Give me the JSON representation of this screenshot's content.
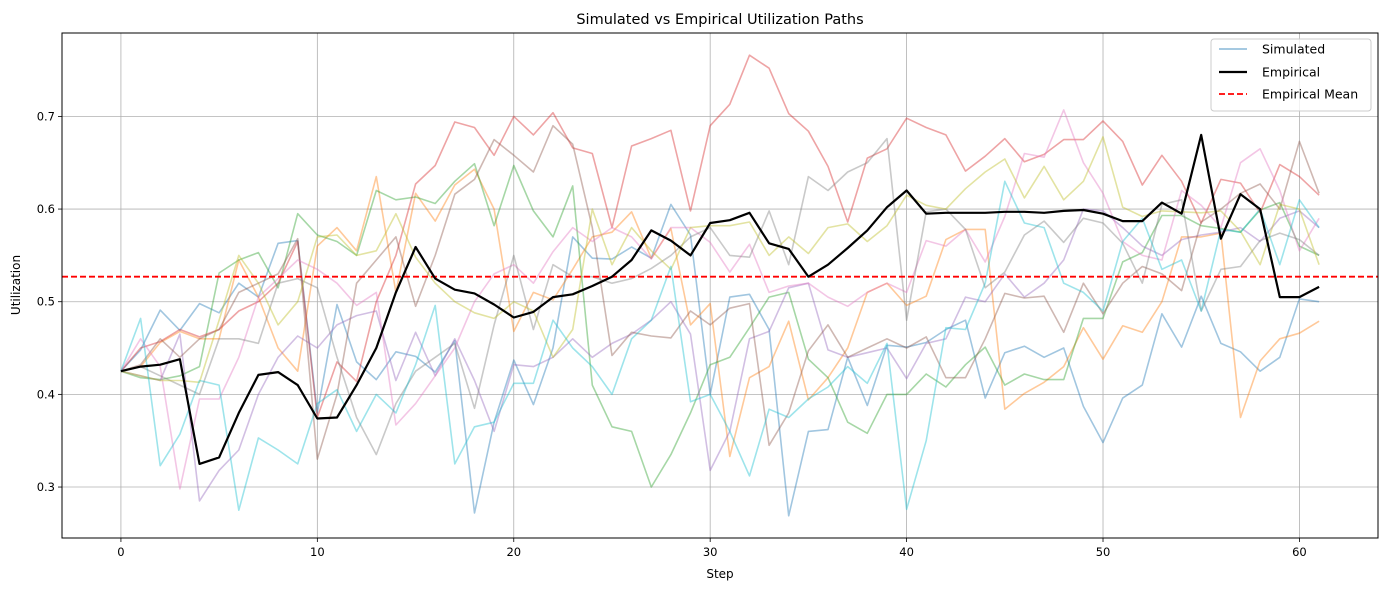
{
  "chart_data": {
    "type": "line",
    "title": "Simulated vs Empirical Utilization Paths",
    "xlabel": "Step",
    "ylabel": "Utilization",
    "xlim": [
      -3,
      64
    ],
    "ylim": [
      0.245,
      0.79
    ],
    "xticks": [
      0,
      10,
      20,
      30,
      40,
      50,
      60
    ],
    "yticks": [
      0.3,
      0.4,
      0.5,
      0.6,
      0.7
    ],
    "grid": true,
    "legend_position": "top-right",
    "legend": [
      {
        "label": "Simulated",
        "color": "#1f77b4",
        "style": "solid",
        "alpha": 0.4
      },
      {
        "label": "Empirical",
        "color": "#000000",
        "style": "solid",
        "alpha": 1
      },
      {
        "label": "Empirical Mean",
        "color": "#ff0000",
        "style": "dashed",
        "alpha": 1
      }
    ],
    "empirical_mean": 0.527,
    "x": [
      0,
      1,
      2,
      3,
      4,
      5,
      6,
      7,
      8,
      9,
      10,
      11,
      12,
      13,
      14,
      15,
      16,
      17,
      18,
      19,
      20,
      21,
      22,
      23,
      24,
      25,
      26,
      27,
      28,
      29,
      30,
      31,
      32,
      33,
      34,
      35,
      36,
      37,
      38,
      39,
      40,
      41,
      42,
      43,
      44,
      45,
      46,
      47,
      48,
      49,
      50,
      51,
      52,
      53,
      54,
      55,
      56,
      57,
      58,
      59,
      60,
      61
    ],
    "empirical": [
      0.425,
      0.43,
      0.432,
      0.438,
      0.325,
      0.332,
      0.38,
      0.421,
      0.424,
      0.41,
      0.374,
      0.375,
      0.41,
      0.45,
      0.51,
      0.559,
      0.525,
      0.513,
      0.509,
      0.497,
      0.483,
      0.489,
      0.505,
      0.508,
      0.517,
      0.527,
      0.545,
      0.577,
      0.566,
      0.55,
      0.585,
      0.588,
      0.596,
      0.563,
      0.557,
      0.527,
      0.54,
      0.558,
      0.577,
      0.602,
      0.62,
      0.595,
      0.596,
      0.596,
      0.596,
      0.597,
      0.597,
      0.596,
      0.598,
      0.599,
      0.595,
      0.587,
      0.587,
      0.607,
      0.595,
      0.68,
      0.568,
      0.616,
      0.6,
      0.505,
      0.505,
      0.516
    ],
    "series": [
      {
        "color": "#1f77b4",
        "values": [
          0.425,
          0.448,
          0.491,
          0.469,
          0.498,
          0.488,
          0.52,
          0.505,
          0.563,
          0.566,
          0.38,
          0.497,
          0.435,
          0.416,
          0.446,
          0.441,
          0.424,
          0.458,
          0.272,
          0.37,
          0.437,
          0.389,
          0.45,
          0.57,
          0.547,
          0.546,
          0.559,
          0.547,
          0.605,
          0.572,
          0.4,
          0.505,
          0.508,
          0.47,
          0.269,
          0.36,
          0.362,
          0.44,
          0.388,
          0.453,
          0.451,
          0.456,
          0.47,
          0.48,
          0.396,
          0.445,
          0.452,
          0.44,
          0.45,
          0.387,
          0.348,
          0.396,
          0.41,
          0.487,
          0.451,
          0.506,
          0.455,
          0.446,
          0.425,
          0.44,
          0.503,
          0.5
        ]
      },
      {
        "color": "#ff7f0e",
        "values": [
          0.425,
          0.43,
          0.456,
          0.468,
          0.46,
          0.46,
          0.545,
          0.505,
          0.45,
          0.425,
          0.56,
          0.58,
          0.555,
          0.635,
          0.51,
          0.617,
          0.587,
          0.626,
          0.643,
          0.6,
          0.468,
          0.51,
          0.502,
          0.535,
          0.57,
          0.575,
          0.597,
          0.547,
          0.579,
          0.475,
          0.498,
          0.333,
          0.418,
          0.43,
          0.479,
          0.394,
          0.418,
          0.45,
          0.51,
          0.52,
          0.496,
          0.506,
          0.567,
          0.578,
          0.578,
          0.384,
          0.401,
          0.413,
          0.43,
          0.472,
          0.438,
          0.474,
          0.467,
          0.5,
          0.57,
          0.57,
          0.574,
          0.375,
          0.436,
          0.46,
          0.466,
          0.479
        ]
      },
      {
        "color": "#2ca02c",
        "values": [
          0.425,
          0.418,
          0.416,
          0.42,
          0.43,
          0.531,
          0.545,
          0.553,
          0.515,
          0.595,
          0.572,
          0.565,
          0.55,
          0.62,
          0.61,
          0.613,
          0.606,
          0.63,
          0.649,
          0.582,
          0.647,
          0.598,
          0.57,
          0.625,
          0.41,
          0.365,
          0.36,
          0.3,
          0.335,
          0.38,
          0.432,
          0.44,
          0.472,
          0.505,
          0.51,
          0.438,
          0.418,
          0.37,
          0.358,
          0.4,
          0.4,
          0.422,
          0.408,
          0.432,
          0.451,
          0.41,
          0.422,
          0.416,
          0.416,
          0.482,
          0.482,
          0.543,
          0.553,
          0.593,
          0.593,
          0.582,
          0.579,
          0.575,
          0.599,
          0.607,
          0.56,
          0.55
        ]
      },
      {
        "color": "#d62728",
        "values": [
          0.425,
          0.45,
          0.457,
          0.47,
          0.462,
          0.47,
          0.49,
          0.5,
          0.52,
          0.565,
          0.375,
          0.435,
          0.414,
          0.5,
          0.55,
          0.627,
          0.647,
          0.694,
          0.688,
          0.658,
          0.7,
          0.68,
          0.704,
          0.666,
          0.66,
          0.58,
          0.668,
          0.676,
          0.685,
          0.598,
          0.69,
          0.713,
          0.766,
          0.752,
          0.703,
          0.684,
          0.646,
          0.586,
          0.655,
          0.665,
          0.698,
          0.688,
          0.68,
          0.641,
          0.657,
          0.676,
          0.651,
          0.659,
          0.675,
          0.675,
          0.695,
          0.673,
          0.626,
          0.658,
          0.63,
          0.585,
          0.632,
          0.628,
          0.596,
          0.648,
          0.635,
          0.615
        ]
      },
      {
        "color": "#9467bd",
        "values": [
          0.425,
          0.42,
          0.415,
          0.465,
          0.285,
          0.318,
          0.34,
          0.4,
          0.44,
          0.463,
          0.45,
          0.475,
          0.485,
          0.49,
          0.415,
          0.467,
          0.42,
          0.46,
          0.415,
          0.36,
          0.432,
          0.43,
          0.44,
          0.46,
          0.44,
          0.455,
          0.465,
          0.48,
          0.5,
          0.465,
          0.318,
          0.36,
          0.46,
          0.468,
          0.515,
          0.52,
          0.448,
          0.44,
          0.445,
          0.45,
          0.417,
          0.455,
          0.46,
          0.505,
          0.5,
          0.53,
          0.505,
          0.52,
          0.545,
          0.6,
          0.598,
          0.58,
          0.56,
          0.55,
          0.567,
          0.572,
          0.575,
          0.58,
          0.565,
          0.59,
          0.598,
          0.58
        ]
      },
      {
        "color": "#8c564b",
        "values": [
          0.425,
          0.432,
          0.46,
          0.44,
          0.46,
          0.47,
          0.51,
          0.52,
          0.53,
          0.568,
          0.33,
          0.4,
          0.52,
          0.545,
          0.57,
          0.495,
          0.55,
          0.616,
          0.632,
          0.675,
          0.658,
          0.64,
          0.69,
          0.67,
          0.58,
          0.442,
          0.467,
          0.463,
          0.461,
          0.49,
          0.475,
          0.493,
          0.498,
          0.345,
          0.38,
          0.447,
          0.475,
          0.44,
          0.45,
          0.46,
          0.45,
          0.462,
          0.418,
          0.418,
          0.46,
          0.509,
          0.504,
          0.506,
          0.467,
          0.52,
          0.487,
          0.52,
          0.538,
          0.53,
          0.512,
          0.586,
          0.6,
          0.617,
          0.627,
          0.6,
          0.673,
          0.617
        ]
      },
      {
        "color": "#e377c2",
        "values": [
          0.425,
          0.46,
          0.43,
          0.298,
          0.395,
          0.395,
          0.44,
          0.505,
          0.525,
          0.545,
          0.535,
          0.52,
          0.496,
          0.51,
          0.367,
          0.39,
          0.42,
          0.45,
          0.5,
          0.53,
          0.54,
          0.52,
          0.554,
          0.58,
          0.565,
          0.58,
          0.57,
          0.546,
          0.58,
          0.58,
          0.564,
          0.532,
          0.562,
          0.51,
          0.517,
          0.52,
          0.505,
          0.495,
          0.51,
          0.52,
          0.51,
          0.566,
          0.56,
          0.578,
          0.543,
          0.592,
          0.66,
          0.656,
          0.707,
          0.65,
          0.617,
          0.565,
          0.55,
          0.545,
          0.62,
          0.604,
          0.58,
          0.65,
          0.665,
          0.62,
          0.555,
          0.59
        ]
      },
      {
        "color": "#7f7f7f",
        "values": [
          0.425,
          0.43,
          0.42,
          0.41,
          0.4,
          0.46,
          0.46,
          0.455,
          0.52,
          0.525,
          0.515,
          0.44,
          0.375,
          0.335,
          0.39,
          0.425,
          0.44,
          0.455,
          0.385,
          0.475,
          0.55,
          0.47,
          0.54,
          0.527,
          0.527,
          0.52,
          0.525,
          0.536,
          0.55,
          0.57,
          0.58,
          0.55,
          0.548,
          0.598,
          0.54,
          0.635,
          0.62,
          0.64,
          0.65,
          0.676,
          0.48,
          0.597,
          0.6,
          0.578,
          0.515,
          0.532,
          0.572,
          0.587,
          0.564,
          0.59,
          0.585,
          0.563,
          0.52,
          0.605,
          0.61,
          0.49,
          0.535,
          0.538,
          0.566,
          0.574,
          0.567,
          0.55
        ]
      },
      {
        "color": "#bcbd22",
        "values": [
          0.425,
          0.42,
          0.415,
          0.415,
          0.413,
          0.48,
          0.55,
          0.52,
          0.475,
          0.5,
          0.57,
          0.572,
          0.55,
          0.555,
          0.595,
          0.548,
          0.52,
          0.5,
          0.488,
          0.482,
          0.5,
          0.49,
          0.44,
          0.47,
          0.6,
          0.54,
          0.58,
          0.555,
          0.535,
          0.58,
          0.582,
          0.582,
          0.586,
          0.55,
          0.57,
          0.552,
          0.58,
          0.584,
          0.565,
          0.582,
          0.615,
          0.604,
          0.6,
          0.622,
          0.64,
          0.654,
          0.612,
          0.646,
          0.61,
          0.63,
          0.678,
          0.602,
          0.592,
          0.598,
          0.597,
          0.596,
          0.598,
          0.576,
          0.54,
          0.605,
          0.6,
          0.54
        ]
      },
      {
        "color": "#17becf",
        "values": [
          0.425,
          0.482,
          0.323,
          0.357,
          0.415,
          0.41,
          0.275,
          0.353,
          0.34,
          0.325,
          0.39,
          0.405,
          0.36,
          0.4,
          0.38,
          0.432,
          0.496,
          0.325,
          0.365,
          0.37,
          0.412,
          0.412,
          0.48,
          0.45,
          0.43,
          0.4,
          0.46,
          0.48,
          0.538,
          0.392,
          0.4,
          0.36,
          0.312,
          0.384,
          0.375,
          0.395,
          0.408,
          0.43,
          0.412,
          0.455,
          0.276,
          0.35,
          0.472,
          0.47,
          0.52,
          0.63,
          0.585,
          0.58,
          0.52,
          0.51,
          0.49,
          0.565,
          0.59,
          0.535,
          0.545,
          0.49,
          0.578,
          0.575,
          0.6,
          0.54,
          0.61,
          0.58
        ]
      }
    ]
  }
}
